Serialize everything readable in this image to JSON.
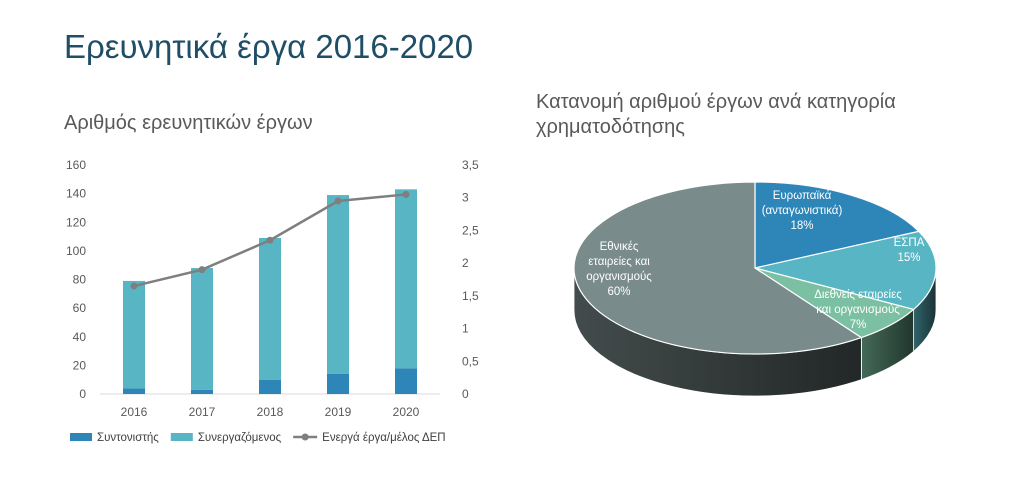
{
  "page": {
    "title": "Ερευνητικά έργα 2016-2020"
  },
  "chart_data": [
    {
      "type": "bar",
      "title": "Αριθμός ερευνητικών έργων",
      "categories": [
        "2016",
        "2017",
        "2018",
        "2019",
        "2020"
      ],
      "stacked": true,
      "series": [
        {
          "name": "Συντονιστής",
          "kind": "bar",
          "axis": "left",
          "color": "#2e86b8",
          "values": [
            4,
            3,
            10,
            14,
            18
          ]
        },
        {
          "name": "Συνεργαζόμενος",
          "kind": "bar",
          "axis": "left",
          "color": "#58b5c3",
          "values": [
            75,
            85,
            99,
            125,
            125
          ]
        },
        {
          "name": "Ενεργά έργα/μέλος ΔΕΠ",
          "kind": "line",
          "axis": "right",
          "color": "#7f7f7f",
          "values": [
            1.65,
            1.9,
            2.35,
            2.95,
            3.05
          ]
        }
      ],
      "y_left": {
        "min": 0,
        "max": 160,
        "step": 20,
        "ticks": [
          "0",
          "20",
          "40",
          "60",
          "80",
          "100",
          "120",
          "140",
          "160"
        ]
      },
      "y_right": {
        "min": 0,
        "max": 3.5,
        "step": 0.5,
        "ticks": [
          "0",
          "0,5",
          "1",
          "1,5",
          "2",
          "2,5",
          "3",
          "3,5"
        ]
      },
      "grid": false,
      "legend": "bottom"
    },
    {
      "type": "pie",
      "title": "Κατανομή αριθμού έργων ανά κατηγορία χρηματοδότησης",
      "slices": [
        {
          "lines": [
            "Ευρωπαϊκά",
            "(ανταγωνιστικά)",
            "18%"
          ],
          "value": 18,
          "color": "#2e86b8"
        },
        {
          "lines": [
            "ΕΣΠΑ",
            "15%"
          ],
          "value": 15,
          "color": "#58b5c3"
        },
        {
          "lines": [
            "Διεθνείς εταιρείες",
            "και οργανισμούς",
            "7%"
          ],
          "value": 7,
          "color": "#7bc0a2"
        },
        {
          "lines": [
            "Εθνικές",
            "εταιρείες και",
            "οργανισμούς",
            "60%"
          ],
          "value": 60,
          "color": "#7a8b8b"
        }
      ]
    }
  ]
}
